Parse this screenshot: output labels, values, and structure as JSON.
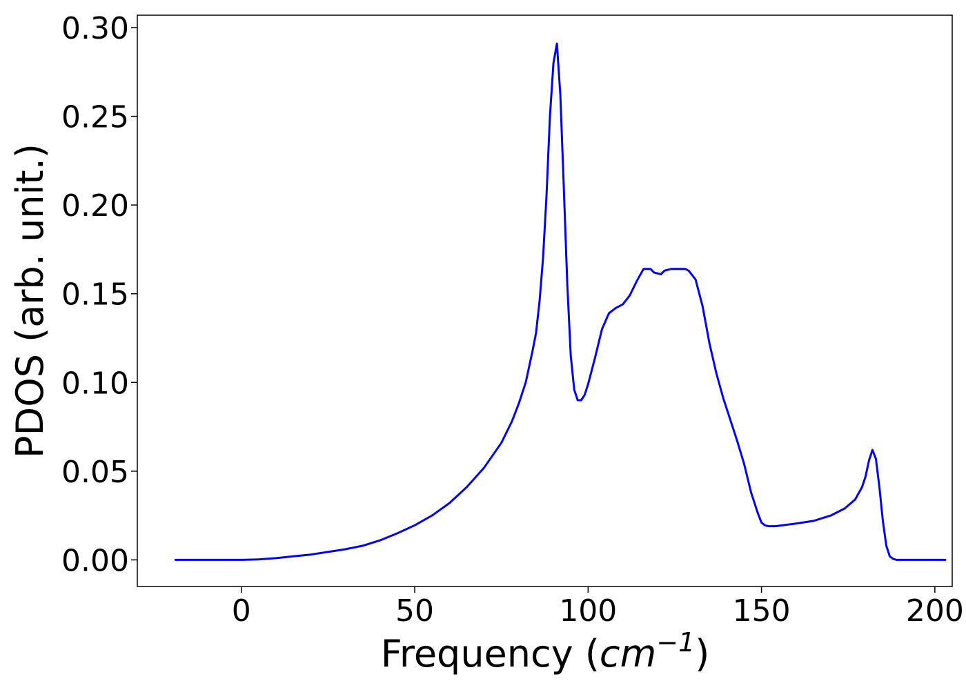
{
  "chart_data": {
    "type": "line",
    "title": "",
    "xlabel": "Frequency (",
    "xlabel_math": "cm",
    "xlabel_exponent": "−1",
    "xlabel_close": ")",
    "ylabel": "PDOS (arb. unit.)",
    "xlim": [
      -30,
      205
    ],
    "ylim": [
      -0.015,
      0.307
    ],
    "xticks": [
      {
        "value": 0,
        "label": "0"
      },
      {
        "value": 50,
        "label": "50"
      },
      {
        "value": 100,
        "label": "100"
      },
      {
        "value": 150,
        "label": "150"
      },
      {
        "value": 200,
        "label": "200"
      }
    ],
    "yticks": [
      {
        "value": 0.0,
        "label": "0.00"
      },
      {
        "value": 0.05,
        "label": "0.05"
      },
      {
        "value": 0.1,
        "label": "0.10"
      },
      {
        "value": 0.15,
        "label": "0.15"
      },
      {
        "value": 0.2,
        "label": "0.20"
      },
      {
        "value": 0.25,
        "label": "0.25"
      },
      {
        "value": 0.3,
        "label": "0.30"
      }
    ],
    "grid": false,
    "series": [
      {
        "color": "#0000ff",
        "x": [
          -19,
          0,
          5,
          10,
          15,
          20,
          25,
          30,
          35,
          40,
          45,
          50,
          55,
          60,
          65,
          70,
          75,
          78,
          80,
          82,
          84,
          85,
          86,
          87,
          88,
          89,
          90,
          91,
          92,
          93,
          94,
          95,
          96,
          97,
          98,
          99,
          100,
          102,
          104,
          106,
          108,
          110,
          112,
          114,
          116,
          118,
          119,
          121,
          122,
          124,
          126,
          128,
          129,
          131,
          133,
          135,
          137,
          139,
          141,
          143,
          145,
          147,
          149,
          150,
          151,
          152,
          154,
          160,
          165,
          170,
          174,
          177,
          179,
          180,
          181,
          182,
          183,
          184,
          185,
          186,
          187,
          188,
          189,
          190,
          192,
          203
        ],
        "y": [
          0.0,
          0.0,
          0.0003,
          0.001,
          0.002,
          0.003,
          0.0045,
          0.006,
          0.008,
          0.011,
          0.015,
          0.0195,
          0.025,
          0.032,
          0.041,
          0.052,
          0.066,
          0.078,
          0.088,
          0.1,
          0.118,
          0.128,
          0.146,
          0.17,
          0.205,
          0.25,
          0.28,
          0.291,
          0.262,
          0.21,
          0.155,
          0.115,
          0.096,
          0.09,
          0.09,
          0.093,
          0.099,
          0.114,
          0.13,
          0.139,
          0.142,
          0.144,
          0.149,
          0.157,
          0.164,
          0.164,
          0.162,
          0.161,
          0.163,
          0.164,
          0.164,
          0.164,
          0.163,
          0.158,
          0.143,
          0.122,
          0.105,
          0.091,
          0.079,
          0.067,
          0.054,
          0.038,
          0.026,
          0.021,
          0.0195,
          0.019,
          0.019,
          0.0205,
          0.022,
          0.025,
          0.029,
          0.034,
          0.041,
          0.047,
          0.056,
          0.062,
          0.057,
          0.041,
          0.022,
          0.008,
          0.002,
          0.0005,
          0.0,
          0.0,
          0.0,
          0.0
        ]
      }
    ]
  }
}
